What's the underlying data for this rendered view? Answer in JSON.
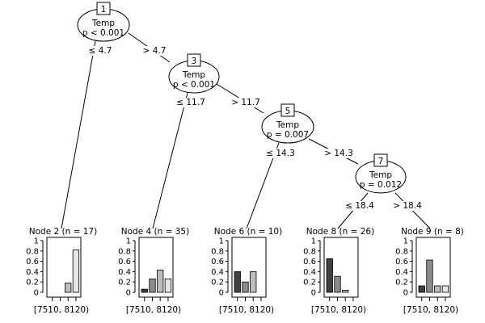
{
  "inner_nodes": [
    {
      "id": "1",
      "variable": "Temp",
      "pvalue": "p < 0.001"
    },
    {
      "id": "3",
      "variable": "Temp",
      "pvalue": "p < 0.001"
    },
    {
      "id": "5",
      "variable": "Temp",
      "pvalue": "p = 0.007"
    },
    {
      "id": "7",
      "variable": "Temp",
      "pvalue": "p = 0.012"
    }
  ],
  "edge_labels": [
    "≤ 4.7",
    "> 4.7",
    "≤ 11.7",
    "> 11.7",
    "≤ 14.3",
    "> 14.3",
    "≤ 18.4",
    "> 18.4"
  ],
  "terminal_nodes": [
    {
      "label": "Node 2 (n = 17)",
      "values": [
        0,
        0,
        0.18,
        0.82
      ]
    },
    {
      "label": "Node 4 (n = 35)",
      "values": [
        0.06,
        0.26,
        0.43,
        0.26
      ]
    },
    {
      "label": "Node 6 (n = 10)",
      "values": [
        0.4,
        0.2,
        0.4,
        0
      ]
    },
    {
      "label": "Node 8 (n = 26)",
      "values": [
        0.65,
        0.31,
        0.04,
        0
      ]
    },
    {
      "label": "Node 9 (n = 8)",
      "values": [
        0.125,
        0.625,
        0.125,
        0.125
      ]
    }
  ],
  "y_ticks": [
    "1",
    "0.8",
    "0.6",
    "0.4",
    "0.2",
    "0"
  ],
  "x_label": "[7510, 8120)",
  "bar_colors": [
    "#404040",
    "#8c8c8c",
    "#bdbdbd",
    "#e6e6e6"
  ]
}
